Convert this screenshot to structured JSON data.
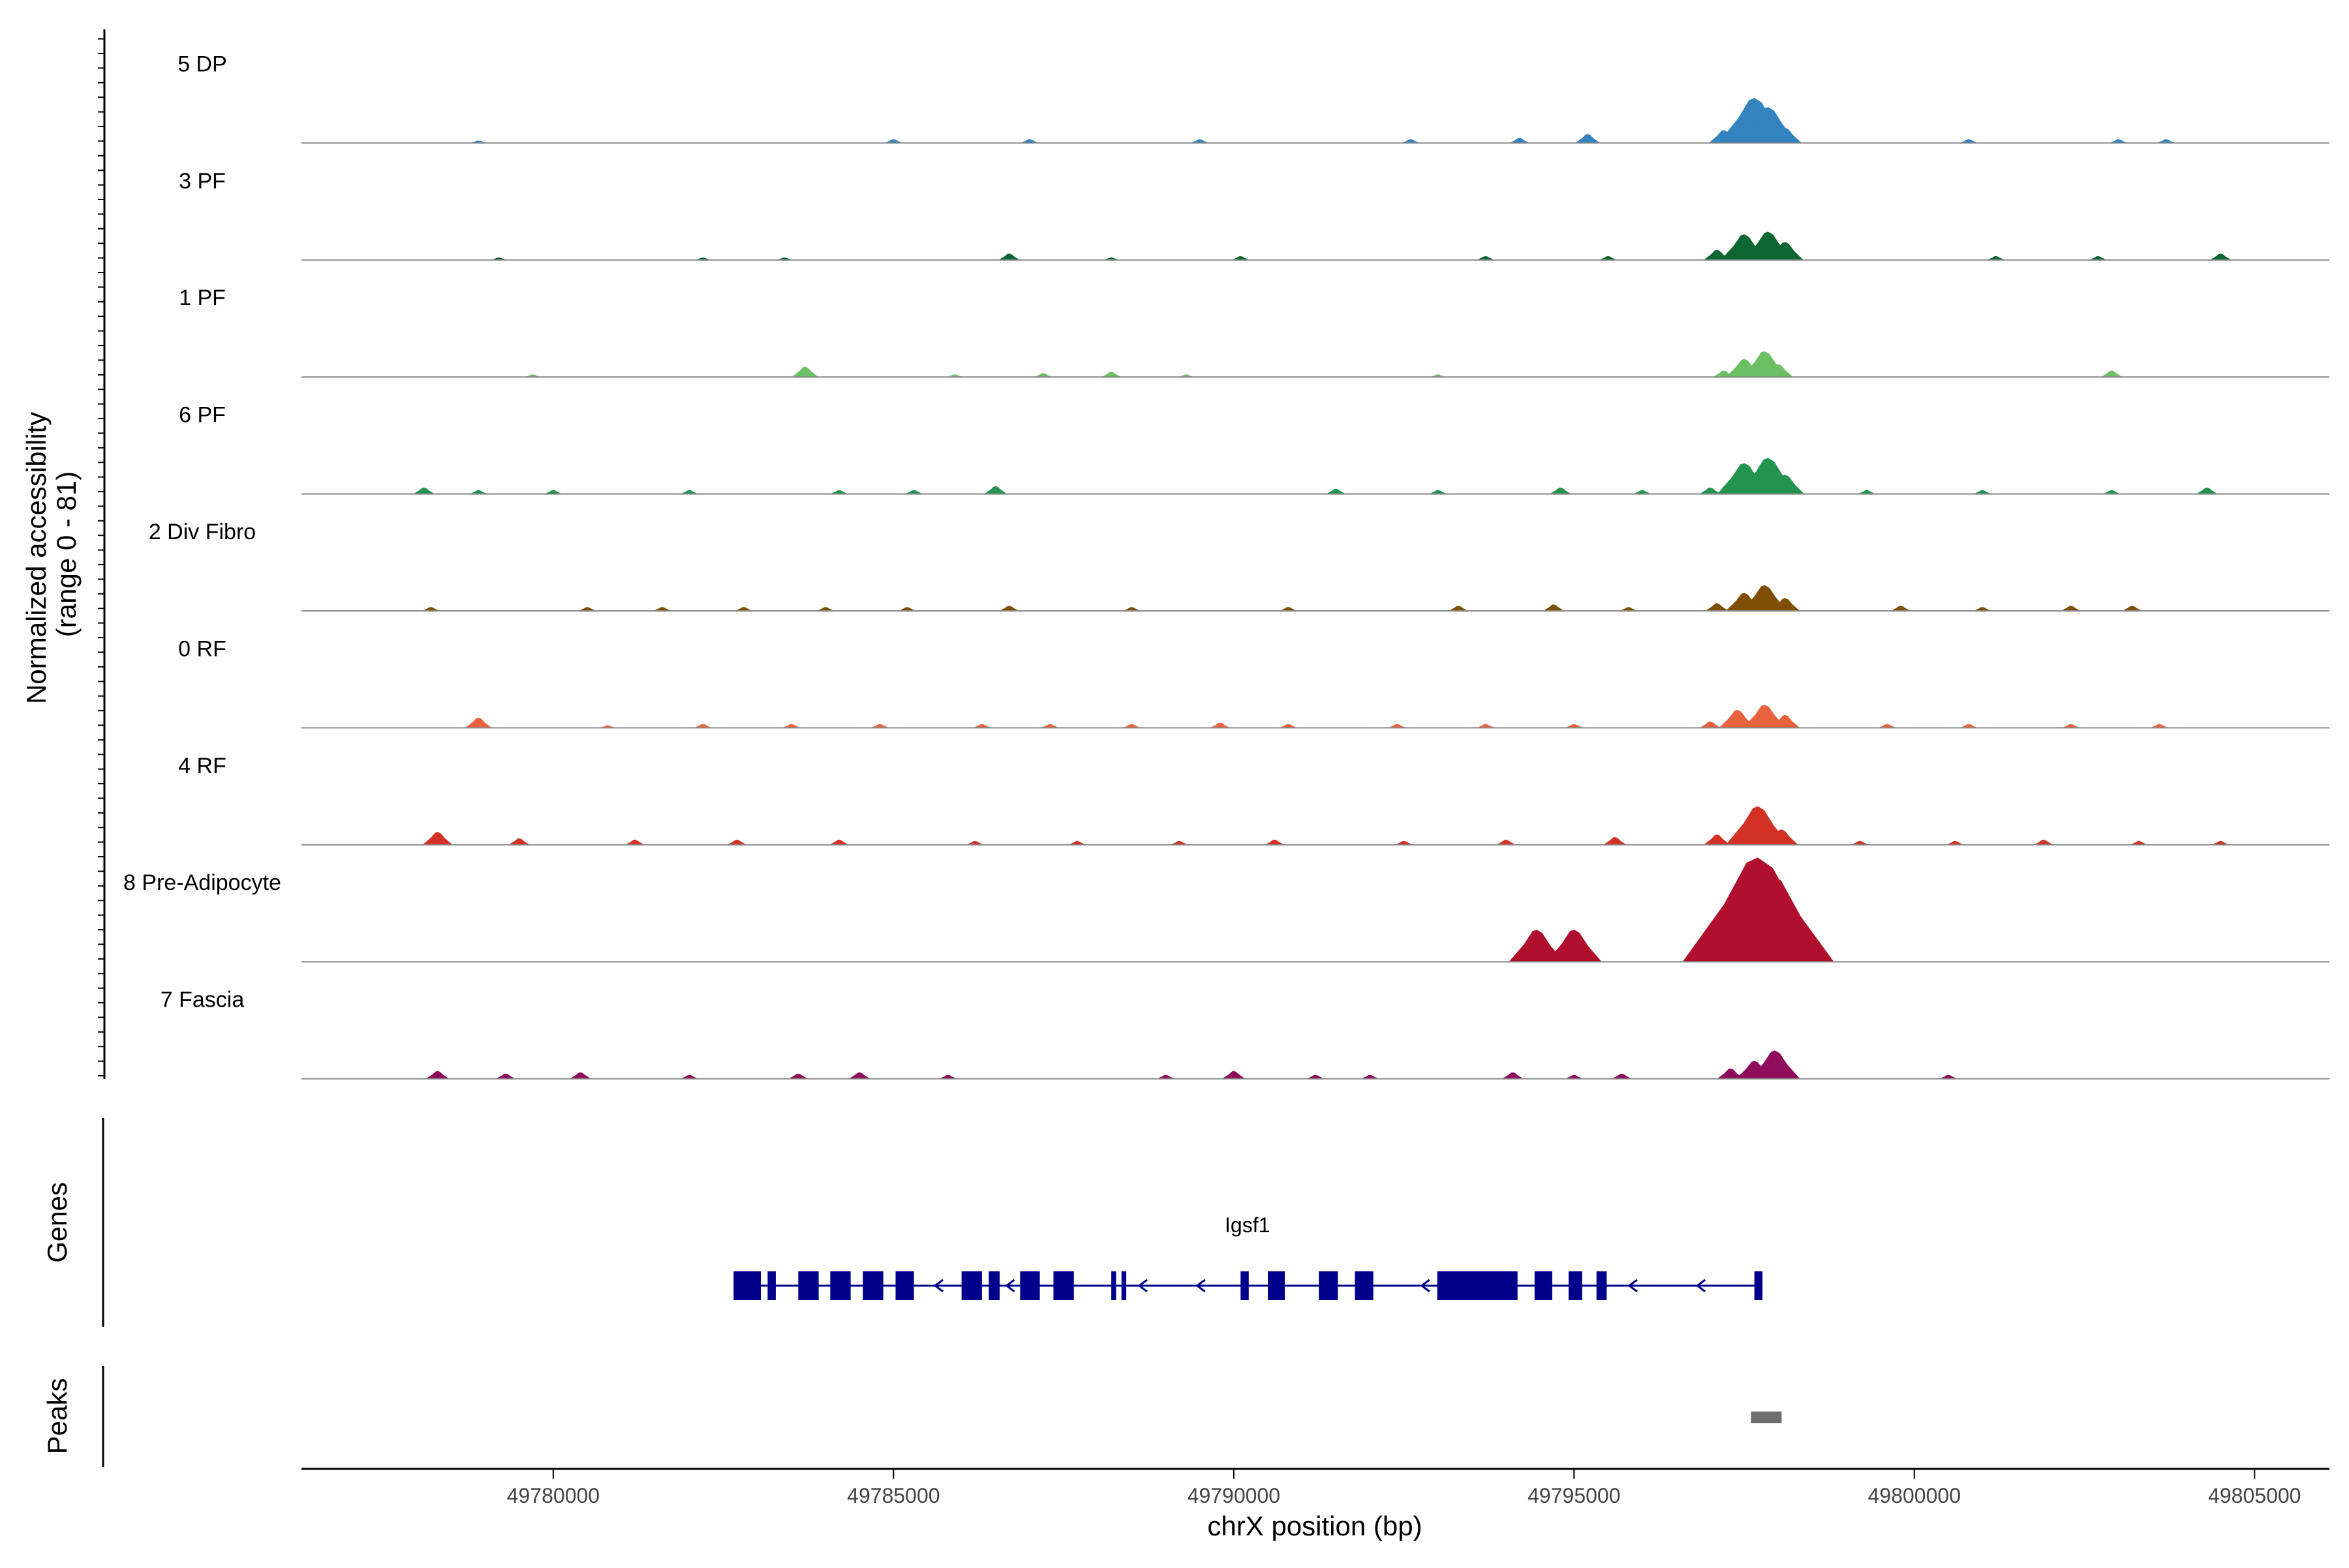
{
  "chart_data": {
    "type": "area",
    "title": "",
    "xlabel": "chrX position (bp)",
    "ylabel_line1": "Normalized accessibility",
    "ylabel_line2": "(range 0 - 81)",
    "y_range": [
      0,
      81
    ],
    "xlim": [
      49776300,
      49806100
    ],
    "x_ticks": [
      {
        "value": 49780000,
        "label": "49780000"
      },
      {
        "value": 49785000,
        "label": "49785000"
      },
      {
        "value": 49790000,
        "label": "49790000"
      },
      {
        "value": 49795000,
        "label": "49795000"
      },
      {
        "value": 49800000,
        "label": "49800000"
      },
      {
        "value": 49805000,
        "label": "49805000"
      }
    ],
    "tracks": [
      {
        "name": "5 DP",
        "color": "#3283be",
        "peaks": [
          [
            49778900,
            2
          ],
          [
            49785000,
            3
          ],
          [
            49787000,
            3
          ],
          [
            49789500,
            3
          ],
          [
            49792600,
            3
          ],
          [
            49794200,
            4
          ],
          [
            49795200,
            7
          ],
          [
            49797200,
            10
          ],
          [
            49797650,
            35
          ],
          [
            49797850,
            28
          ],
          [
            49798100,
            12
          ],
          [
            49800800,
            3
          ],
          [
            49803000,
            3
          ],
          [
            49803700,
            3
          ]
        ]
      },
      {
        "name": "3 PF",
        "color": "#0b6630",
        "peaks": [
          [
            49779200,
            2
          ],
          [
            49782200,
            2
          ],
          [
            49783400,
            2
          ],
          [
            49786700,
            5
          ],
          [
            49788200,
            2
          ],
          [
            49790100,
            3
          ],
          [
            49793700,
            3
          ],
          [
            49795500,
            3
          ],
          [
            49797100,
            8
          ],
          [
            49797500,
            20
          ],
          [
            49797850,
            22
          ],
          [
            49798100,
            14
          ],
          [
            49801200,
            3
          ],
          [
            49802700,
            3
          ],
          [
            49804500,
            5
          ]
        ]
      },
      {
        "name": "1 PF",
        "color": "#6cbf63",
        "peaks": [
          [
            49779700,
            2
          ],
          [
            49783700,
            8
          ],
          [
            49785900,
            2
          ],
          [
            49787200,
            3
          ],
          [
            49788200,
            4
          ],
          [
            49789300,
            2
          ],
          [
            49793000,
            2
          ],
          [
            49797200,
            5
          ],
          [
            49797500,
            14
          ],
          [
            49797800,
            20
          ],
          [
            49798000,
            10
          ],
          [
            49802900,
            5
          ]
        ]
      },
      {
        "name": "6 PF",
        "color": "#23944f",
        "peaks": [
          [
            49778100,
            5
          ],
          [
            49778900,
            3
          ],
          [
            49780000,
            3
          ],
          [
            49782000,
            3
          ],
          [
            49784200,
            3
          ],
          [
            49785300,
            3
          ],
          [
            49786500,
            6
          ],
          [
            49791500,
            4
          ],
          [
            49793000,
            3
          ],
          [
            49794800,
            5
          ],
          [
            49796000,
            3
          ],
          [
            49797000,
            5
          ],
          [
            49797500,
            24
          ],
          [
            49797850,
            28
          ],
          [
            49798100,
            15
          ],
          [
            49799300,
            3
          ],
          [
            49801000,
            3
          ],
          [
            49802900,
            3
          ],
          [
            49804300,
            5
          ]
        ]
      },
      {
        "name": "2 Div Fibro",
        "color": "#7f4f06",
        "peaks": [
          [
            49778200,
            3
          ],
          [
            49780500,
            3
          ],
          [
            49781600,
            3
          ],
          [
            49782800,
            3
          ],
          [
            49784000,
            3
          ],
          [
            49785200,
            3
          ],
          [
            49786700,
            4
          ],
          [
            49788500,
            3
          ],
          [
            49790800,
            3
          ],
          [
            49793300,
            4
          ],
          [
            49794700,
            5
          ],
          [
            49795800,
            3
          ],
          [
            49797100,
            6
          ],
          [
            49797500,
            14
          ],
          [
            49797800,
            20
          ],
          [
            49798100,
            10
          ],
          [
            49799800,
            4
          ],
          [
            49801000,
            3
          ],
          [
            49802300,
            4
          ],
          [
            49803200,
            4
          ]
        ]
      },
      {
        "name": "0 RF",
        "color": "#e8623e",
        "peaks": [
          [
            49778900,
            8
          ],
          [
            49780800,
            2
          ],
          [
            49782200,
            3
          ],
          [
            49783500,
            3
          ],
          [
            49784800,
            3
          ],
          [
            49786300,
            3
          ],
          [
            49787300,
            3
          ],
          [
            49788500,
            3
          ],
          [
            49789800,
            4
          ],
          [
            49790800,
            3
          ],
          [
            49792400,
            3
          ],
          [
            49793700,
            3
          ],
          [
            49795000,
            3
          ],
          [
            49797000,
            5
          ],
          [
            49797400,
            14
          ],
          [
            49797800,
            18
          ],
          [
            49798100,
            10
          ],
          [
            49799600,
            3
          ],
          [
            49800800,
            3
          ],
          [
            49802300,
            3
          ],
          [
            49803600,
            3
          ]
        ]
      },
      {
        "name": "4 RF",
        "color": "#d33126",
        "peaks": [
          [
            49778300,
            10
          ],
          [
            49779500,
            5
          ],
          [
            49781200,
            4
          ],
          [
            49782700,
            4
          ],
          [
            49784200,
            4
          ],
          [
            49786200,
            3
          ],
          [
            49787700,
            3
          ],
          [
            49789200,
            3
          ],
          [
            49790600,
            4
          ],
          [
            49792500,
            3
          ],
          [
            49794000,
            4
          ],
          [
            49795600,
            6
          ],
          [
            49797100,
            8
          ],
          [
            49797700,
            30
          ],
          [
            49798050,
            12
          ],
          [
            49799200,
            3
          ],
          [
            49800600,
            3
          ],
          [
            49801900,
            4
          ],
          [
            49803300,
            3
          ],
          [
            49804500,
            3
          ]
        ]
      },
      {
        "name": "8 Pre-Adipocyte",
        "color": "#b0102d",
        "peaks": [
          [
            49794450,
            25
          ],
          [
            49795000,
            25
          ],
          [
            49797000,
            14
          ],
          [
            49797250,
            12
          ],
          [
            49797550,
            55
          ],
          [
            49797700,
            81
          ],
          [
            49797850,
            70
          ],
          [
            49798000,
            45
          ],
          [
            49798300,
            10
          ]
        ]
      },
      {
        "name": "7 Fascia",
        "color": "#8e0c5c",
        "peaks": [
          [
            49778300,
            6
          ],
          [
            49779300,
            4
          ],
          [
            49780400,
            5
          ],
          [
            49782000,
            3
          ],
          [
            49783600,
            4
          ],
          [
            49784500,
            5
          ],
          [
            49785800,
            3
          ],
          [
            49789000,
            3
          ],
          [
            49790000,
            6
          ],
          [
            49791200,
            3
          ],
          [
            49792000,
            3
          ],
          [
            49794100,
            5
          ],
          [
            49795000,
            3
          ],
          [
            49795700,
            4
          ],
          [
            49797300,
            8
          ],
          [
            49797650,
            14
          ],
          [
            49797950,
            22
          ],
          [
            49800500,
            3
          ]
        ]
      }
    ],
    "gene": {
      "name": "Igsf1",
      "strand": "-",
      "start": 49782650,
      "end": 49797750,
      "exons": [
        [
          49782650,
          49783050
        ],
        [
          49783150,
          49783270
        ],
        [
          49783600,
          49783900
        ],
        [
          49784070,
          49784370
        ],
        [
          49784550,
          49784850
        ],
        [
          49785030,
          49785300
        ],
        [
          49786000,
          49786300
        ],
        [
          49786400,
          49786560
        ],
        [
          49786860,
          49787150
        ],
        [
          49787350,
          49787650
        ],
        [
          49788200,
          49788270
        ],
        [
          49788350,
          49788420
        ],
        [
          49790100,
          49790220
        ],
        [
          49790500,
          49790750
        ],
        [
          49791250,
          49791530
        ],
        [
          49791780,
          49792050
        ],
        [
          49792990,
          49794170
        ],
        [
          49794420,
          49794680
        ],
        [
          49794920,
          49795120
        ],
        [
          49795330,
          49795480
        ],
        [
          49797650,
          49797750
        ]
      ]
    },
    "peaks_track": [
      [
        49797600,
        49798050
      ]
    ],
    "panel_labels": {
      "genes": "Genes",
      "peaks": "Peaks"
    }
  }
}
